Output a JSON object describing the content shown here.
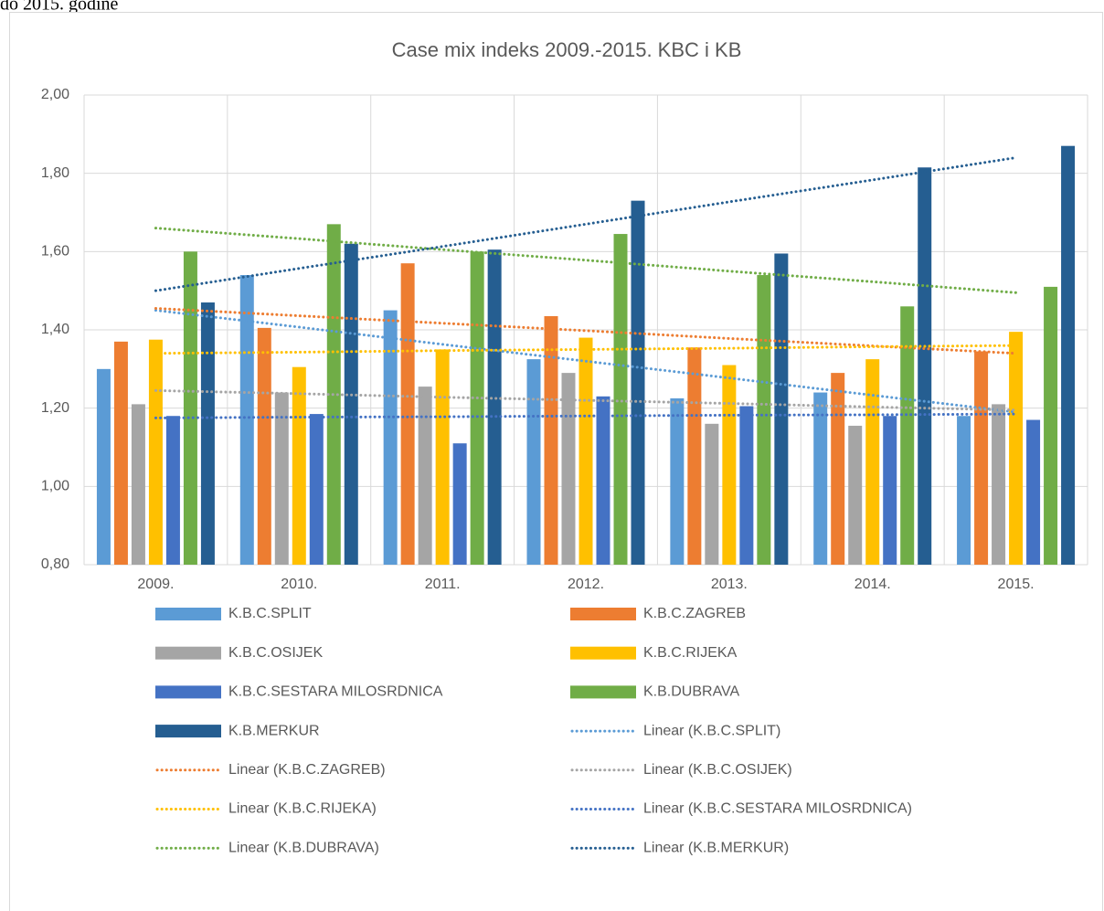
{
  "page_caption": "do 2015. godine",
  "chart_data": {
    "type": "bar",
    "title": "Case mix indeks 2009.-2015. KBC i KB",
    "categories": [
      "2009.",
      "2010.",
      "2011.",
      "2012.",
      "2013.",
      "2014.",
      "2015."
    ],
    "series": [
      {
        "name": "K.B.C.SPLIT",
        "color": "#5b9bd5",
        "values": [
          1.3,
          1.54,
          1.45,
          1.325,
          1.225,
          1.24,
          1.18
        ]
      },
      {
        "name": "K.B.C.ZAGREB",
        "color": "#ed7d31",
        "values": [
          1.37,
          1.405,
          1.57,
          1.435,
          1.355,
          1.29,
          1.345
        ]
      },
      {
        "name": "K.B.C.OSIJEK",
        "color": "#a5a5a5",
        "values": [
          1.21,
          1.24,
          1.255,
          1.29,
          1.16,
          1.155,
          1.21
        ]
      },
      {
        "name": "K.B.C.RIJEKA",
        "color": "#ffc000",
        "values": [
          1.375,
          1.305,
          1.35,
          1.38,
          1.31,
          1.325,
          1.395
        ]
      },
      {
        "name": "K.B.C.SESTARA MILOSRDNICA",
        "color": "#4472c4",
        "values": [
          1.18,
          1.185,
          1.11,
          1.23,
          1.205,
          1.18,
          1.17
        ]
      },
      {
        "name": "K.B.DUBRAVA",
        "color": "#70ad47",
        "values": [
          1.6,
          1.67,
          1.6,
          1.645,
          1.54,
          1.46,
          1.51
        ]
      },
      {
        "name": "K.B.MERKUR",
        "color": "#255e91",
        "values": [
          1.47,
          1.62,
          1.605,
          1.73,
          1.595,
          1.815,
          1.87
        ]
      }
    ],
    "trendlines": [
      {
        "name": "Linear (K.B.C.SPLIT)",
        "color": "#5b9bd5",
        "values": [
          1.45,
          1.407,
          1.363,
          1.32,
          1.277,
          1.233,
          1.19
        ]
      },
      {
        "name": "Linear (K.B.C.ZAGREB)",
        "color": "#ed7d31",
        "values": [
          1.455,
          1.436,
          1.417,
          1.398,
          1.378,
          1.359,
          1.34
        ]
      },
      {
        "name": "Linear (K.B.C.OSIJEK)",
        "color": "#a5a5a5",
        "values": [
          1.245,
          1.237,
          1.228,
          1.22,
          1.212,
          1.203,
          1.195
        ]
      },
      {
        "name": "Linear (K.B.C.RIJEKA)",
        "color": "#ffc000",
        "values": [
          1.34,
          1.343,
          1.347,
          1.35,
          1.353,
          1.357,
          1.36
        ]
      },
      {
        "name": "Linear (K.B.C.SESTARA MILOSRDNICA)",
        "color": "#4472c4",
        "values": [
          1.175,
          1.177,
          1.178,
          1.18,
          1.182,
          1.183,
          1.185
        ]
      },
      {
        "name": "Linear (K.B.DUBRAVA)",
        "color": "#70ad47",
        "values": [
          1.66,
          1.633,
          1.605,
          1.578,
          1.55,
          1.523,
          1.495
        ]
      },
      {
        "name": "Linear (K.B.MERKUR)",
        "color": "#255e91",
        "values": [
          1.5,
          1.557,
          1.613,
          1.67,
          1.727,
          1.783,
          1.84
        ]
      }
    ],
    "ylim": [
      0.8,
      2.0
    ],
    "yticks": [
      {
        "value": 0.8,
        "label": "0,80"
      },
      {
        "value": 1.0,
        "label": "1,00"
      },
      {
        "value": 1.2,
        "label": "1,20"
      },
      {
        "value": 1.4,
        "label": "1,40"
      },
      {
        "value": 1.6,
        "label": "1,60"
      },
      {
        "value": 1.8,
        "label": "1,80"
      },
      {
        "value": 2.0,
        "label": "2,00"
      }
    ],
    "grid": true,
    "legend": "bottom"
  }
}
